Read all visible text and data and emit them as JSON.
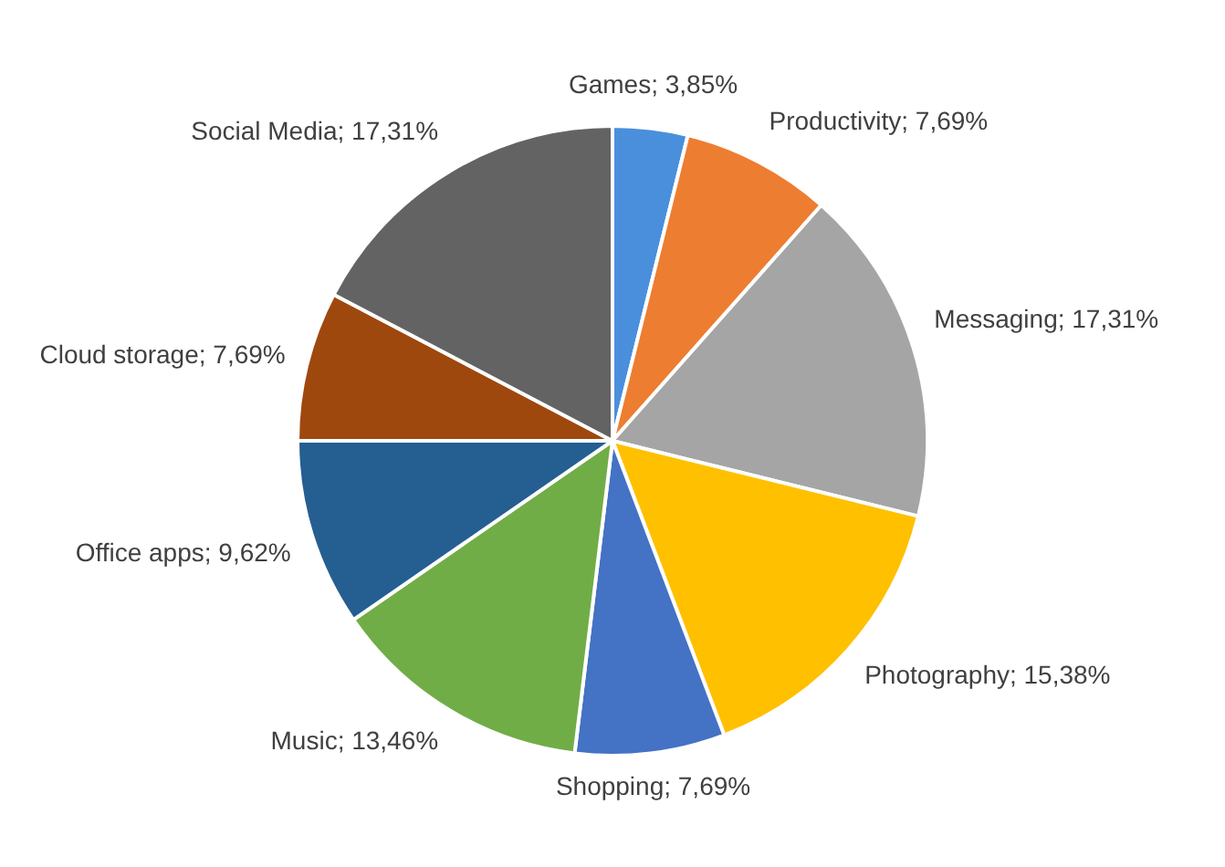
{
  "chart_data": {
    "type": "pie",
    "categories": [
      "Games",
      "Productivity",
      "Messaging",
      "Photography",
      "Shopping",
      "Music",
      "Office apps",
      "Cloud storage",
      "Social Media"
    ],
    "values": [
      3.85,
      7.69,
      17.31,
      15.38,
      7.69,
      13.46,
      9.62,
      7.69,
      17.31
    ],
    "value_labels": [
      "3,85%",
      "7,69%",
      "17,31%",
      "15,38%",
      "7,69%",
      "13,46%",
      "9,62%",
      "7,69%",
      "17,31%"
    ],
    "colors": [
      "#4a8fdb",
      "#ed7d31",
      "#a5a5a5",
      "#ffc000",
      "#4472c4",
      "#70ad47",
      "#255e91",
      "#9e480e",
      "#636363"
    ],
    "legend": false
  }
}
